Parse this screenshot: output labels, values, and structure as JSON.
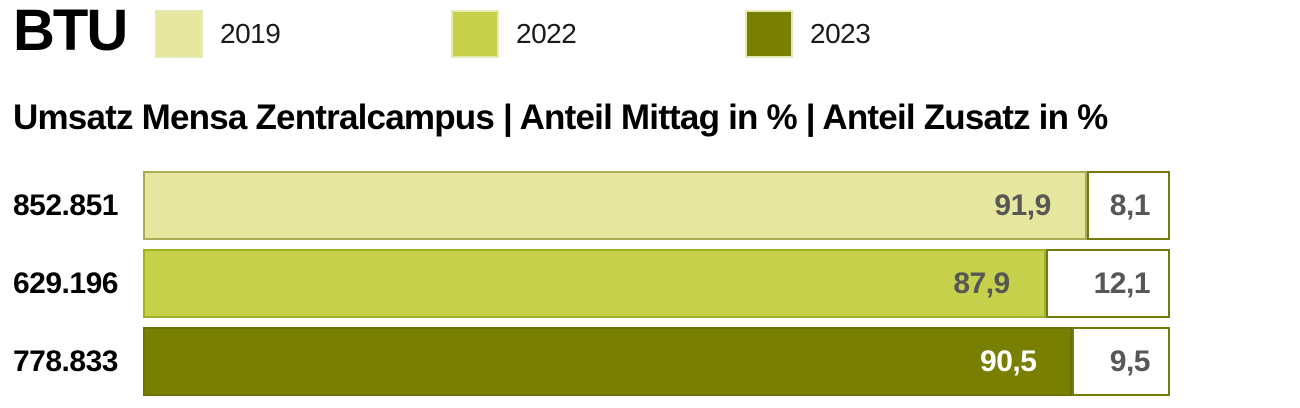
{
  "logo": {
    "text": "BTU"
  },
  "legend": {
    "items": [
      {
        "label": "2019",
        "color": "#e4e79d"
      },
      {
        "label": "2022",
        "color": "#c6d14b"
      },
      {
        "label": "2023",
        "color": "#798001"
      }
    ],
    "swatch_border_color": "#e7e9b4"
  },
  "title": "Umsatz Mensa Zentralcampus | Anteil Mittag in % | Anteil Zusatz in %",
  "chart_data": {
    "type": "bar",
    "orientation": "horizontal",
    "stacked": true,
    "unit": "%",
    "title": "Umsatz Mensa Zentralcampus | Anteil Mittag in % | Anteil Zusatz in %",
    "series_names": [
      "Anteil Mittag in %",
      "Anteil Zusatz in %"
    ],
    "categories": [
      "2019",
      "2022",
      "2023"
    ],
    "xlim": [
      0,
      100
    ],
    "grid": false,
    "legend_position": "top",
    "value_text_color": "#575756",
    "white_segment_border_color": "#737a08",
    "rows": [
      {
        "year": "2019",
        "umsatz_label": "852.851",
        "umsatz": 852851,
        "mittag_pct": 91.9,
        "zusatz_pct": 8.1,
        "mittag_label": "91,9",
        "zusatz_label": "8,1",
        "color": "#e4e79d",
        "border_color": "#a9ad55",
        "mittag_text_color": "#575756"
      },
      {
        "year": "2022",
        "umsatz_label": "629.196",
        "umsatz": 629196,
        "mittag_pct": 87.9,
        "zusatz_pct": 12.1,
        "mittag_label": "87,9",
        "zusatz_label": "12,1",
        "color": "#c6d14b",
        "border_color": "#a3b128",
        "mittag_text_color": "#575756"
      },
      {
        "year": "2023",
        "umsatz_label": "778.833",
        "umsatz": 778833,
        "mittag_pct": 90.5,
        "zusatz_pct": 9.5,
        "mittag_label": "90,5",
        "zusatz_label": "9,5",
        "color": "#798001",
        "border_color": "#6d7302",
        "mittag_text_color": "#ffffff"
      }
    ]
  }
}
